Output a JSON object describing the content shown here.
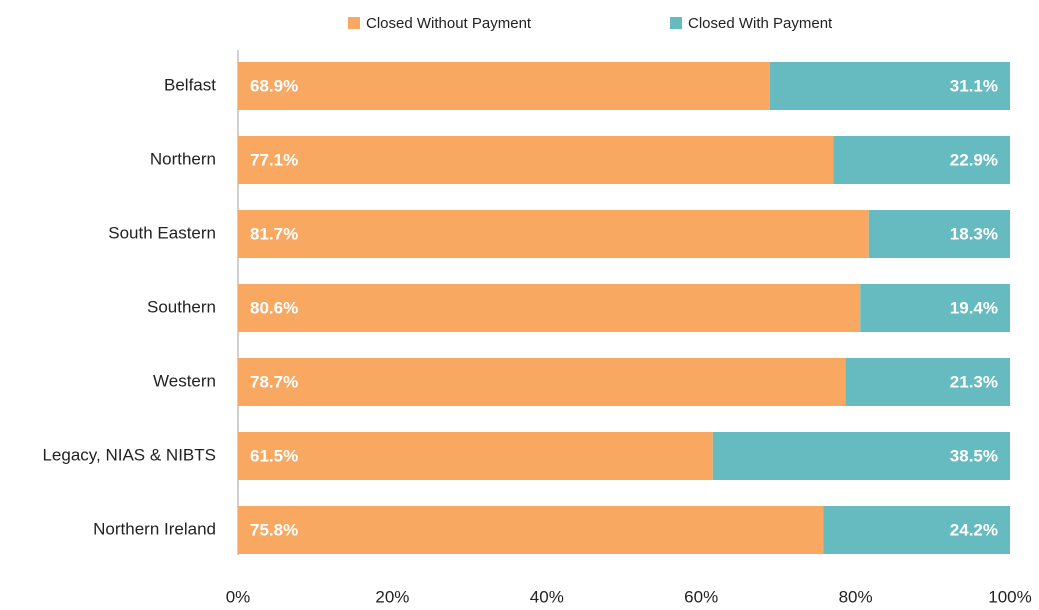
{
  "chart_data": {
    "type": "bar",
    "orientation": "horizontal",
    "stacked": true,
    "categories": [
      "Belfast",
      "Northern",
      "South Eastern",
      "Southern",
      "Western",
      "Legacy, NIAS & NIBTS",
      "Northern Ireland"
    ],
    "series": [
      {
        "name": "Closed Without Payment",
        "color": "#f9a862",
        "values": [
          68.9,
          77.1,
          81.7,
          80.6,
          78.7,
          61.5,
          75.8
        ],
        "value_labels": [
          "68.9%",
          "77.1%",
          "81.7%",
          "80.6%",
          "78.7%",
          "61.5%",
          "75.8%"
        ]
      },
      {
        "name": "Closed With Payment",
        "color": "#66bbc1",
        "values": [
          31.1,
          22.9,
          18.3,
          19.4,
          21.3,
          38.5,
          24.2
        ],
        "value_labels": [
          "31.1%",
          "22.9%",
          "18.3%",
          "19.4%",
          "21.3%",
          "38.5%",
          "24.2%"
        ]
      }
    ],
    "xlim": [
      0,
      100
    ],
    "xticks": [
      {
        "value": 0,
        "label": "0%"
      },
      {
        "value": 20,
        "label": "20%"
      },
      {
        "value": 40,
        "label": "40%"
      },
      {
        "value": 60,
        "label": "60%"
      },
      {
        "value": 80,
        "label": "80%"
      },
      {
        "value": 100,
        "label": "100%"
      }
    ],
    "legend": "top"
  }
}
